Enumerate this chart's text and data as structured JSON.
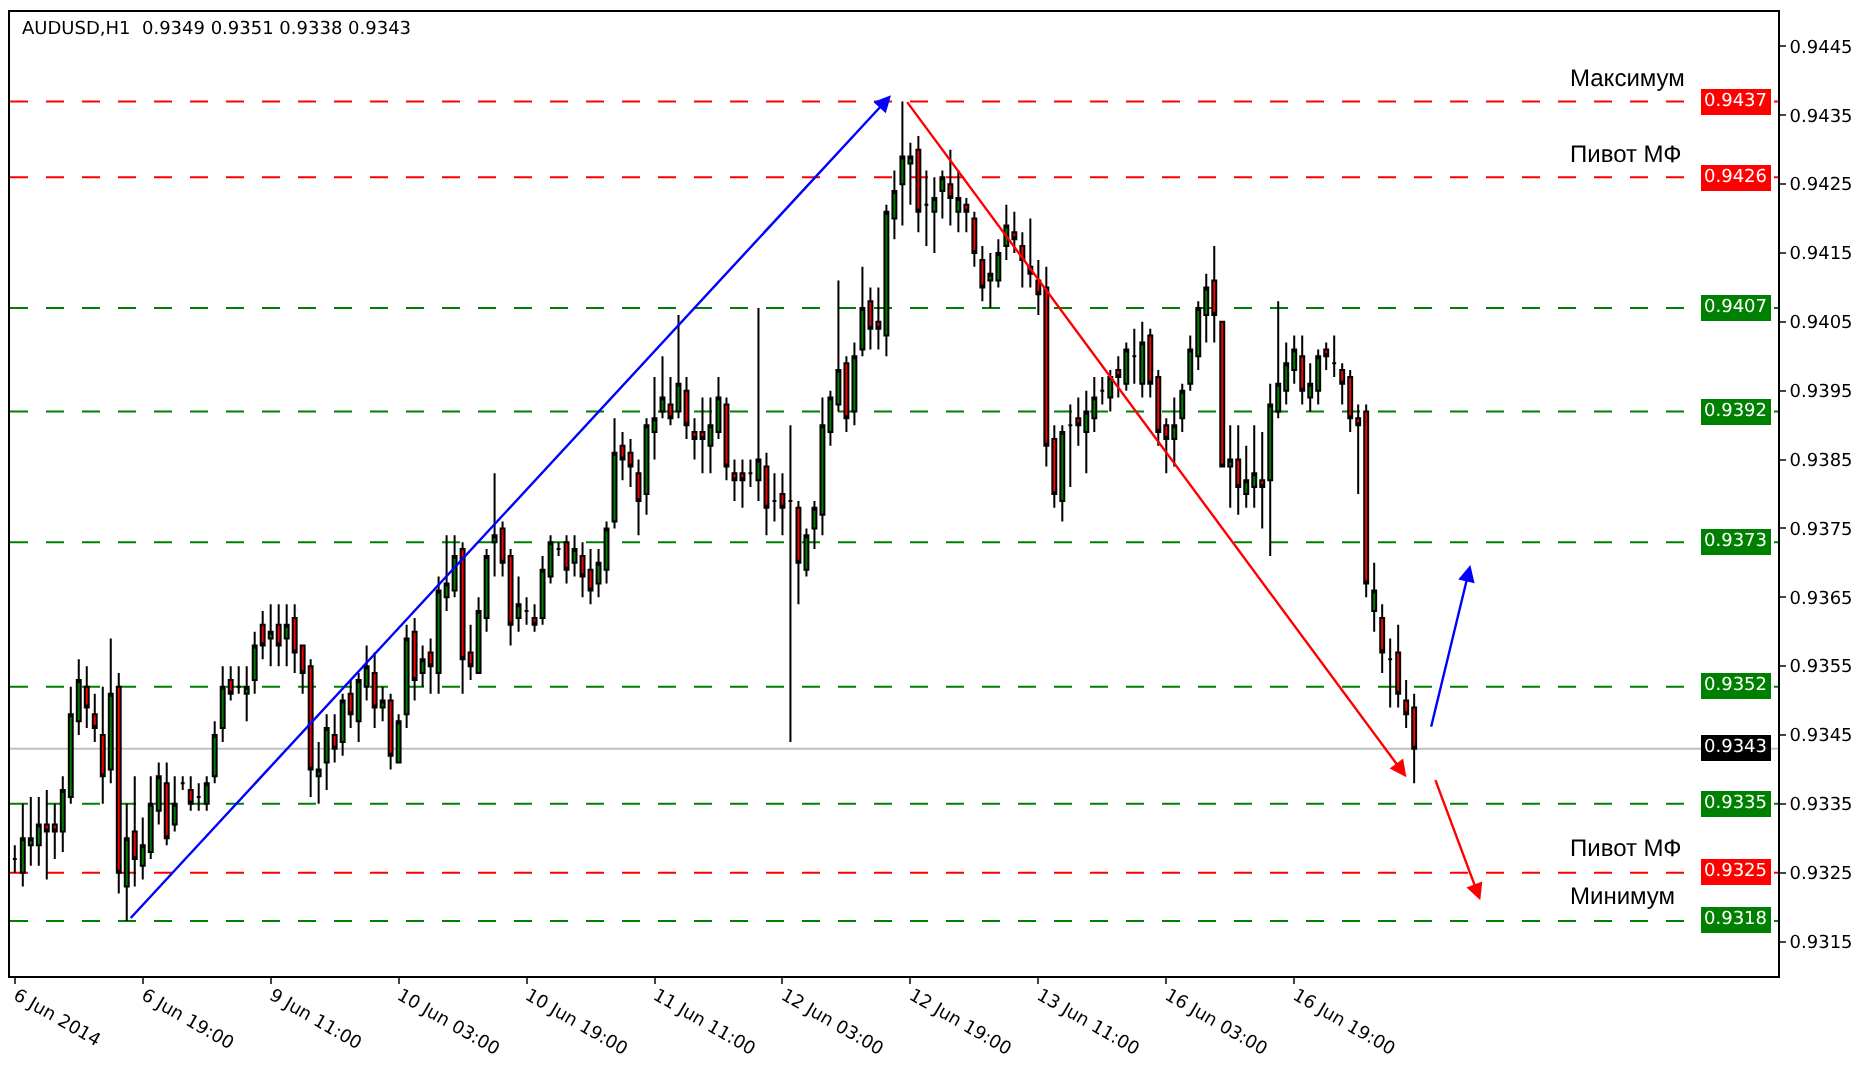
{
  "chart_data": {
    "type": "candlestick",
    "title": "AUDUSD,H1  0.9349 0.9351 0.9338 0.9343",
    "categories": [
      "6 Jun 2014",
      null,
      null,
      null,
      null,
      null,
      null,
      null,
      null,
      null,
      null,
      null,
      null,
      null,
      null,
      null,
      "6 Jun 19:00",
      null,
      null,
      null,
      null,
      null,
      null,
      null,
      null,
      null,
      null,
      null,
      null,
      null,
      null,
      null,
      "9 Jun 11:00",
      null,
      null,
      null,
      null,
      null,
      null,
      null,
      null,
      null,
      null,
      null,
      null,
      null,
      null,
      null,
      "10 Jun 03:00",
      null,
      null,
      null,
      null,
      null,
      null,
      null,
      null,
      null,
      null,
      null,
      null,
      null,
      null,
      null,
      "10 Jun 19:00",
      null,
      null,
      null,
      null,
      null,
      null,
      null,
      null,
      null,
      null,
      null,
      null,
      null,
      null,
      null,
      "11 Jun 11:00",
      null,
      null,
      null,
      null,
      null,
      null,
      null,
      null,
      null,
      null,
      null,
      null,
      null,
      null,
      null,
      "12 Jun 03:00",
      null,
      null,
      null,
      null,
      null,
      null,
      null,
      null,
      null,
      null,
      null,
      null,
      null,
      null,
      null,
      "12 Jun 19:00",
      null,
      null,
      null,
      null,
      null,
      null,
      null,
      null,
      null,
      null,
      null,
      null,
      null,
      null,
      null,
      "13 Jun 11:00",
      null,
      null,
      null,
      null,
      null,
      null,
      null,
      null,
      null,
      null,
      null,
      null,
      null,
      null,
      null,
      "16 Jun 03:00",
      null,
      null,
      null,
      null,
      null,
      null,
      null,
      null,
      null,
      null,
      null,
      null,
      null,
      null,
      null,
      "16 Jun 19:00",
      null,
      null,
      null,
      null,
      null,
      null,
      null,
      null,
      null,
      null,
      null,
      null,
      null,
      null,
      null,
      null,
      null,
      null,
      null,
      null,
      null,
      null,
      null,
      null,
      null,
      null,
      null,
      null,
      null,
      null,
      null,
      null,
      null,
      null,
      null,
      null,
      null,
      null,
      null,
      null,
      null,
      null,
      null,
      null,
      null,
      null,
      null,
      null,
      null,
      null,
      null,
      null,
      null,
      null,
      null,
      null,
      null,
      null,
      null,
      null
    ],
    "ohlc": [
      [
        0.9327,
        0.9329,
        0.9325,
        0.9327
      ],
      [
        0.9325,
        0.9335,
        0.9323,
        0.933
      ],
      [
        0.9329,
        0.9336,
        0.9326,
        0.933
      ],
      [
        0.9329,
        0.9336,
        0.9326,
        0.9332
      ],
      [
        0.9332,
        0.9337,
        0.9324,
        0.9331
      ],
      [
        0.9332,
        0.9335,
        0.9327,
        0.9331
      ],
      [
        0.9331,
        0.9339,
        0.9328,
        0.9337
      ],
      [
        0.9336,
        0.9352,
        0.9335,
        0.9348
      ],
      [
        0.9347,
        0.9356,
        0.9345,
        0.9353
      ],
      [
        0.9352,
        0.9355,
        0.9346,
        0.9349
      ],
      [
        0.9348,
        0.9351,
        0.9344,
        0.9346
      ],
      [
        0.9345,
        0.9352,
        0.9335,
        0.9339
      ],
      [
        0.934,
        0.9359,
        0.9338,
        0.9351
      ],
      [
        0.9352,
        0.9354,
        0.9322,
        0.9325
      ],
      [
        0.9323,
        0.9335,
        0.9318,
        0.933
      ],
      [
        0.9331,
        0.9339,
        0.9323,
        0.9327
      ],
      [
        0.9326,
        0.9333,
        0.9324,
        0.9329
      ],
      [
        0.9328,
        0.9339,
        0.9327,
        0.9335
      ],
      [
        0.9334,
        0.9341,
        0.9332,
        0.9339
      ],
      [
        0.9338,
        0.9341,
        0.9329,
        0.933
      ],
      [
        0.9332,
        0.9339,
        0.9331,
        0.9335
      ],
      [
        0.9338,
        0.9339,
        0.9337,
        0.9338
      ],
      [
        0.9337,
        0.9339,
        0.9334,
        0.9335
      ],
      [
        0.9336,
        0.9338,
        0.9334,
        0.9336
      ],
      [
        0.9335,
        0.9339,
        0.9334,
        0.9338
      ],
      [
        0.9339,
        0.9347,
        0.9338,
        0.9345
      ],
      [
        0.9346,
        0.9355,
        0.9344,
        0.9352
      ],
      [
        0.9353,
        0.9355,
        0.935,
        0.9351
      ],
      [
        0.9352,
        0.9355,
        0.9351,
        0.9352
      ],
      [
        0.9351,
        0.9355,
        0.9347,
        0.9352
      ],
      [
        0.9353,
        0.936,
        0.9351,
        0.9358
      ],
      [
        0.9361,
        0.9363,
        0.9356,
        0.9358
      ],
      [
        0.9359,
        0.9364,
        0.9355,
        0.936
      ],
      [
        0.9361,
        0.9364,
        0.9355,
        0.9358
      ],
      [
        0.9359,
        0.9364,
        0.9355,
        0.9361
      ],
      [
        0.9362,
        0.9364,
        0.9354,
        0.9357
      ],
      [
        0.9358,
        0.9358,
        0.9351,
        0.9354
      ],
      [
        0.9355,
        0.9356,
        0.9336,
        0.934
      ],
      [
        0.9339,
        0.9344,
        0.9335,
        0.934
      ],
      [
        0.9341,
        0.9348,
        0.9337,
        0.9346
      ],
      [
        0.9345,
        0.9348,
        0.9341,
        0.9343
      ],
      [
        0.9344,
        0.9351,
        0.9342,
        0.935
      ],
      [
        0.9351,
        0.9353,
        0.9346,
        0.9348
      ],
      [
        0.9347,
        0.9354,
        0.9344,
        0.9353
      ],
      [
        0.9352,
        0.9358,
        0.935,
        0.9355
      ],
      [
        0.9354,
        0.9357,
        0.9346,
        0.9349
      ],
      [
        0.9349,
        0.9352,
        0.9347,
        0.935
      ],
      [
        0.935,
        0.9351,
        0.934,
        0.9342
      ],
      [
        0.9341,
        0.9348,
        0.9341,
        0.9347
      ],
      [
        0.9348,
        0.9361,
        0.9346,
        0.9359
      ],
      [
        0.936,
        0.9362,
        0.935,
        0.9353
      ],
      [
        0.9354,
        0.9358,
        0.9352,
        0.9356
      ],
      [
        0.9357,
        0.9359,
        0.9351,
        0.9355
      ],
      [
        0.9354,
        0.9368,
        0.9351,
        0.9366
      ],
      [
        0.9365,
        0.9374,
        0.9363,
        0.9367
      ],
      [
        0.9366,
        0.9374,
        0.9365,
        0.9371
      ],
      [
        0.9372,
        0.9373,
        0.9351,
        0.9356
      ],
      [
        0.9357,
        0.9361,
        0.9353,
        0.9355
      ],
      [
        0.9354,
        0.9365,
        0.9354,
        0.9363
      ],
      [
        0.9362,
        0.9372,
        0.936,
        0.9371
      ],
      [
        0.9373,
        0.9383,
        0.9368,
        0.9374
      ],
      [
        0.9375,
        0.9376,
        0.9368,
        0.937
      ],
      [
        0.9371,
        0.9372,
        0.9358,
        0.9361
      ],
      [
        0.9362,
        0.9368,
        0.936,
        0.9364
      ],
      [
        0.9363,
        0.9365,
        0.9361,
        0.9363
      ],
      [
        0.9362,
        0.9364,
        0.936,
        0.9361
      ],
      [
        0.9362,
        0.9371,
        0.9361,
        0.9369
      ],
      [
        0.9368,
        0.9374,
        0.9367,
        0.9373
      ],
      [
        0.9372,
        0.9373,
        0.9371,
        0.9372
      ],
      [
        0.9373,
        0.9374,
        0.9367,
        0.9369
      ],
      [
        0.937,
        0.9374,
        0.9368,
        0.9372
      ],
      [
        0.9371,
        0.9373,
        0.9365,
        0.9368
      ],
      [
        0.9369,
        0.9372,
        0.9364,
        0.9366
      ],
      [
        0.9367,
        0.9372,
        0.9365,
        0.937
      ],
      [
        0.9369,
        0.9376,
        0.9367,
        0.9375
      ],
      [
        0.9376,
        0.9391,
        0.9375,
        0.9386
      ],
      [
        0.9387,
        0.9389,
        0.9382,
        0.9385
      ],
      [
        0.9386,
        0.9388,
        0.9381,
        0.9384
      ],
      [
        0.9383,
        0.9385,
        0.9374,
        0.9379
      ],
      [
        0.938,
        0.9391,
        0.9377,
        0.939
      ],
      [
        0.9389,
        0.9397,
        0.9385,
        0.9391
      ],
      [
        0.9392,
        0.94,
        0.9391,
        0.9394
      ],
      [
        0.9393,
        0.9397,
        0.939,
        0.9391
      ],
      [
        0.9392,
        0.9406,
        0.9391,
        0.9396
      ],
      [
        0.9395,
        0.9397,
        0.9388,
        0.939
      ],
      [
        0.9389,
        0.9391,
        0.9385,
        0.9388
      ],
      [
        0.9389,
        0.9394,
        0.9383,
        0.9388
      ],
      [
        0.9387,
        0.9394,
        0.9383,
        0.939
      ],
      [
        0.9389,
        0.9397,
        0.9388,
        0.9394
      ],
      [
        0.9393,
        0.9394,
        0.9382,
        0.9384
      ],
      [
        0.9383,
        0.9385,
        0.9379,
        0.9382
      ],
      [
        0.9383,
        0.9385,
        0.9378,
        0.9382
      ],
      [
        0.9383,
        0.9385,
        0.9381,
        0.9383
      ],
      [
        0.9382,
        0.9407,
        0.9379,
        0.9385
      ],
      [
        0.9384,
        0.9386,
        0.9374,
        0.9378
      ],
      [
        0.9379,
        0.9383,
        0.9376,
        0.9379
      ],
      [
        0.938,
        0.9383,
        0.9374,
        0.9378
      ],
      [
        0.9379,
        0.939,
        0.9344,
        0.9379
      ],
      [
        0.9378,
        0.9379,
        0.9364,
        0.937
      ],
      [
        0.9369,
        0.9375,
        0.9368,
        0.9374
      ],
      [
        0.9375,
        0.9379,
        0.9372,
        0.9378
      ],
      [
        0.9377,
        0.9394,
        0.9374,
        0.939
      ],
      [
        0.9389,
        0.9395,
        0.9387,
        0.9394
      ],
      [
        0.9393,
        0.9411,
        0.9392,
        0.9398
      ],
      [
        0.9399,
        0.94,
        0.9389,
        0.9391
      ],
      [
        0.9392,
        0.9402,
        0.939,
        0.94
      ],
      [
        0.9401,
        0.9413,
        0.94,
        0.9407
      ],
      [
        0.9408,
        0.941,
        0.9401,
        0.9404
      ],
      [
        0.9405,
        0.941,
        0.9401,
        0.9404
      ],
      [
        0.9403,
        0.9422,
        0.94,
        0.9421
      ],
      [
        0.942,
        0.9427,
        0.9417,
        0.9424
      ],
      [
        0.9425,
        0.9437,
        0.9419,
        0.9429
      ],
      [
        0.9428,
        0.9431,
        0.9422,
        0.9429
      ],
      [
        0.943,
        0.9432,
        0.9418,
        0.9421
      ],
      [
        0.9422,
        0.9427,
        0.9416,
        0.9422
      ],
      [
        0.9421,
        0.9426,
        0.9415,
        0.9423
      ],
      [
        0.9424,
        0.9427,
        0.942,
        0.9426
      ],
      [
        0.9425,
        0.943,
        0.9419,
        0.9423
      ],
      [
        0.9421,
        0.9427,
        0.9418,
        0.9423
      ],
      [
        0.9422,
        0.9423,
        0.9418,
        0.9421
      ],
      [
        0.942,
        0.9421,
        0.9413,
        0.9415
      ],
      [
        0.9414,
        0.9416,
        0.9408,
        0.941
      ],
      [
        0.9411,
        0.9415,
        0.9407,
        0.9412
      ],
      [
        0.9411,
        0.9417,
        0.941,
        0.9415
      ],
      [
        0.9416,
        0.9422,
        0.9414,
        0.9419
      ],
      [
        0.9418,
        0.9421,
        0.9415,
        0.9417
      ],
      [
        0.9416,
        0.9418,
        0.941,
        0.9414
      ],
      [
        0.9413,
        0.942,
        0.941,
        0.9412
      ],
      [
        0.9411,
        0.9414,
        0.9406,
        0.9409
      ],
      [
        0.941,
        0.9413,
        0.9384,
        0.9387
      ],
      [
        0.9388,
        0.939,
        0.9378,
        0.938
      ],
      [
        0.9379,
        0.939,
        0.9376,
        0.9389
      ],
      [
        0.939,
        0.9393,
        0.9381,
        0.939
      ],
      [
        0.9391,
        0.9394,
        0.9387,
        0.939
      ],
      [
        0.9389,
        0.9395,
        0.9383,
        0.9392
      ],
      [
        0.9391,
        0.9397,
        0.9389,
        0.9394
      ],
      [
        0.9395,
        0.9397,
        0.9393,
        0.9395
      ],
      [
        0.9394,
        0.9398,
        0.9392,
        0.9397
      ],
      [
        0.9398,
        0.94,
        0.9394,
        0.9397
      ],
      [
        0.9396,
        0.9402,
        0.9395,
        0.9401
      ],
      [
        0.94,
        0.9404,
        0.9396,
        0.94
      ],
      [
        0.9396,
        0.9405,
        0.9394,
        0.9402
      ],
      [
        0.9403,
        0.9404,
        0.9394,
        0.9396
      ],
      [
        0.9397,
        0.9398,
        0.9387,
        0.9389
      ],
      [
        0.939,
        0.9391,
        0.9383,
        0.9388
      ],
      [
        0.9388,
        0.9394,
        0.9384,
        0.939
      ],
      [
        0.9391,
        0.9396,
        0.9389,
        0.9395
      ],
      [
        0.9396,
        0.9403,
        0.9395,
        0.9401
      ],
      [
        0.94,
        0.9408,
        0.9398,
        0.9407
      ],
      [
        0.9406,
        0.9412,
        0.9402,
        0.941
      ],
      [
        0.9411,
        0.9416,
        0.9402,
        0.9406
      ],
      [
        0.9405,
        0.9405,
        0.9384,
        0.9384
      ],
      [
        0.9384,
        0.939,
        0.9378,
        0.9385
      ],
      [
        0.9385,
        0.939,
        0.9377,
        0.9381
      ],
      [
        0.938,
        0.9387,
        0.9378,
        0.9382
      ],
      [
        0.9381,
        0.939,
        0.9378,
        0.9383
      ],
      [
        0.9382,
        0.9389,
        0.9375,
        0.9381
      ],
      [
        0.9382,
        0.9396,
        0.9371,
        0.9393
      ],
      [
        0.9392,
        0.9408,
        0.9391,
        0.9396
      ],
      [
        0.9395,
        0.9402,
        0.9393,
        0.9399
      ],
      [
        0.9398,
        0.9403,
        0.9396,
        0.9401
      ],
      [
        0.94,
        0.9403,
        0.9393,
        0.9395
      ],
      [
        0.9394,
        0.9399,
        0.9392,
        0.9396
      ],
      [
        0.9395,
        0.9401,
        0.9393,
        0.94
      ],
      [
        0.9401,
        0.9402,
        0.9398,
        0.94
      ],
      [
        0.9399,
        0.9403,
        0.9397,
        0.9399
      ],
      [
        0.9398,
        0.9399,
        0.9393,
        0.9396
      ],
      [
        0.9397,
        0.9398,
        0.9389,
        0.9391
      ],
      [
        0.9391,
        0.9393,
        0.938,
        0.939
      ],
      [
        0.9392,
        0.9393,
        0.9365,
        0.9367
      ],
      [
        0.9363,
        0.937,
        0.936,
        0.9366
      ],
      [
        0.9362,
        0.9364,
        0.9354,
        0.9357
      ],
      [
        0.9356,
        0.9359,
        0.9349,
        0.9356
      ],
      [
        0.9357,
        0.9361,
        0.9349,
        0.9351
      ],
      [
        0.935,
        0.9353,
        0.9346,
        0.9348
      ],
      [
        0.9349,
        0.9351,
        0.9338,
        0.9343
      ],
      null,
      null,
      null,
      null,
      null,
      null,
      null,
      null,
      null,
      null,
      null,
      null,
      null,
      null,
      null,
      null,
      null,
      null,
      null,
      null,
      null,
      null,
      null,
      null,
      null,
      null,
      null,
      null,
      null,
      null,
      null,
      null,
      null,
      null,
      null,
      null,
      null,
      null,
      null,
      null,
      null,
      null,
      null,
      null,
      null
    ],
    "ref_lines": [
      {
        "axis": "y",
        "value": 0.9437,
        "label": "Максимум",
        "color": "#ff0000",
        "line_style": "dashed"
      },
      {
        "axis": "y",
        "value": 0.9426,
        "label": "Пивот МФ",
        "color": "#ff0000",
        "line_style": "dashed"
      },
      {
        "axis": "y",
        "value": 0.9407,
        "label": null,
        "color": "#008000",
        "line_style": "dashed"
      },
      {
        "axis": "y",
        "value": 0.9392,
        "label": null,
        "color": "#008000",
        "line_style": "dashed"
      },
      {
        "axis": "y",
        "value": 0.9373,
        "label": null,
        "color": "#008000",
        "line_style": "dashed"
      },
      {
        "axis": "y",
        "value": 0.9352,
        "label": null,
        "color": "#008000",
        "line_style": "dashed"
      },
      {
        "axis": "y",
        "value": 0.9343,
        "label": null,
        "color": "#c0c0c0",
        "line_style": "solid"
      },
      {
        "axis": "y",
        "value": 0.9335,
        "label": null,
        "color": "#008000",
        "line_style": "dashed"
      },
      {
        "axis": "y",
        "value": 0.9325,
        "label": "Пивот МФ",
        "color": "#ff0000",
        "line_style": "dashed"
      },
      {
        "axis": "y",
        "value": 0.9318,
        "label": "Минимум",
        "color": "#008000",
        "line_style": "dashed"
      }
    ],
    "annotations": [
      {
        "text": "0.9437",
        "y": 0.9437
      },
      {
        "text": "0.9426",
        "y": 0.9426
      },
      {
        "text": "0.9407",
        "y": 0.9407
      },
      {
        "text": "0.9392",
        "y": 0.9392
      },
      {
        "text": "0.9373",
        "y": 0.9373
      },
      {
        "text": "0.9352",
        "y": 0.9352
      },
      {
        "text": "0.9343",
        "y": 0.9343
      },
      {
        "text": "0.9335",
        "y": 0.9335
      },
      {
        "text": "0.9325",
        "y": 0.9325
      },
      {
        "text": "0.9318",
        "y": 0.9318
      }
    ],
    "ylim": [
      0.931,
      0.945
    ],
    "yticks": [
      0.9315,
      0.9325,
      0.9335,
      0.9345,
      0.9355,
      0.9365,
      0.9375,
      0.9385,
      0.9395,
      0.9405,
      0.9415,
      0.9425,
      0.9435,
      0.9445
    ]
  }
}
